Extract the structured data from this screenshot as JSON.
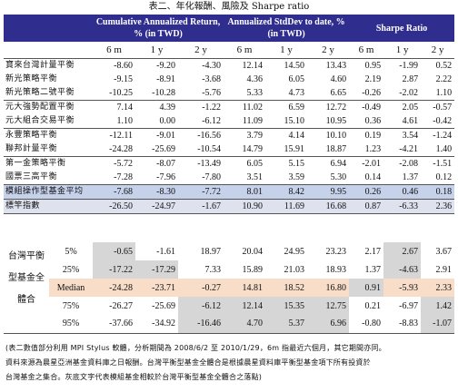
{
  "title": "表二、年化報酬、風險及 Sharpe ratio",
  "headers": {
    "group1": "Cumulative Annualized Return, % (in TWD)",
    "group2": "Annualized StdDev to date, % (in TWD)",
    "group3": "Sharpe Ratio",
    "periods": [
      "6 m",
      "1 y",
      "2 y",
      "6 m",
      "1 y",
      "2 y",
      "6 m",
      "1 y",
      "2 y"
    ]
  },
  "funds": [
    {
      "name": "寶來台灣計量平衡",
      "values": [
        "-8.60",
        "-9.20",
        "-4.30",
        "12.14",
        "14.50",
        "13.43",
        "0.95",
        "-1.99",
        "0.52"
      ]
    },
    {
      "name": "新光策略平衡",
      "values": [
        "-9.15",
        "-8.91",
        "-3.68",
        "4.36",
        "6.05",
        "4.60",
        "2.19",
        "2.87",
        "2.22"
      ]
    },
    {
      "name": "新光策略二號平衡",
      "values": [
        "-10.25",
        "-10.28",
        "-5.76",
        "5.33",
        "4.73",
        "6.65",
        "-0.26",
        "-2.02",
        "1.10"
      ]
    },
    {
      "name": "元大強勢配置平衡",
      "values": [
        "7.14",
        "4.39",
        "-1.22",
        "11.02",
        "6.59",
        "12.72",
        "-0.49",
        "2.05",
        "-0.57"
      ]
    },
    {
      "name": "元大組合交易平衡",
      "values": [
        "1.10",
        "0.00",
        "-6.12",
        "11.09",
        "15.10",
        "10.95",
        "0.36",
        "4.61",
        "-0.42"
      ]
    },
    {
      "name": "永豐策略平衡",
      "values": [
        "-12.11",
        "-9.01",
        "-16.56",
        "3.79",
        "4.14",
        "10.10",
        "0.19",
        "3.54",
        "-1.24"
      ]
    },
    {
      "name": "聯邦計量平衡",
      "values": [
        "-24.28",
        "-25.69",
        "-10.54",
        "14.79",
        "15.91",
        "18.87",
        "1.23",
        "-4.21",
        "1.40"
      ]
    },
    {
      "name": "第一金策略平衡",
      "values": [
        "-5.72",
        "-8.07",
        "-13.49",
        "6.05",
        "5.15",
        "6.94",
        "-2.01",
        "-2.08",
        "-1.51"
      ]
    },
    {
      "name": "國票三高平衡",
      "values": [
        "-7.28",
        "-7.96",
        "-7.80",
        "3.51",
        "3.59",
        "5.30",
        "0.14",
        "1.37",
        "0.12"
      ]
    }
  ],
  "average": {
    "name": "模組操作型基金平均",
    "values": [
      "-7.68",
      "-8.30",
      "-7.72",
      "8.01",
      "8.42",
      "9.95",
      "0.26",
      "0.46",
      "0.18"
    ]
  },
  "benchmark": {
    "name": "標竿指數",
    "values": [
      "-26.50",
      "-24.97",
      "-1.67",
      "10.90",
      "11.69",
      "16.68",
      "0.87",
      "-6.33",
      "2.36"
    ]
  },
  "peer": {
    "label_line1": "台灣平衡",
    "label_line2": "型基金全",
    "label_line3": "體合",
    "rows": [
      {
        "q": "5%",
        "values": [
          "-0.65",
          "-1.61",
          "18.97",
          "20.04",
          "24.95",
          "23.23",
          "2.17",
          "2.67",
          "3.67"
        ]
      },
      {
        "q": "25%",
        "values": [
          "-17.22",
          "-17.29",
          "7.33",
          "15.89",
          "21.03",
          "18.93",
          "1.37",
          "-4.63",
          "2.91"
        ]
      },
      {
        "q": "Median",
        "values": [
          "-24.28",
          "-23.71",
          "-0.27",
          "14.81",
          "18.52",
          "16.80",
          "0.91",
          "-5.93",
          "2.33"
        ]
      },
      {
        "q": "75%",
        "values": [
          "-26.27",
          "-25.69",
          "-6.12",
          "12.14",
          "15.35",
          "12.75",
          "0.21",
          "-6.97",
          "1.42"
        ]
      },
      {
        "q": "95%",
        "values": [
          "-37.66",
          "-34.92",
          "-16.46",
          "4.70",
          "5.37",
          "6.96",
          "-0.80",
          "-8.83",
          "-1.07"
        ]
      }
    ]
  },
  "notes": [
    "(表二數值部分利用 MPI Stylus 軟體，分析期間為 2008/6/2 至 2010/1/29，6m 指最近六個月，其它期間亦同。",
    "資料來源為晨星亞洲基金資料庫之日報酬。台灣平衡型基金全體合是根據晨星資料庫平衡型基金項下所有投資於",
    "台灣基金之集合。灰底文字代表模組基金相較於台灣平衡型基金全體合之落點)"
  ]
}
